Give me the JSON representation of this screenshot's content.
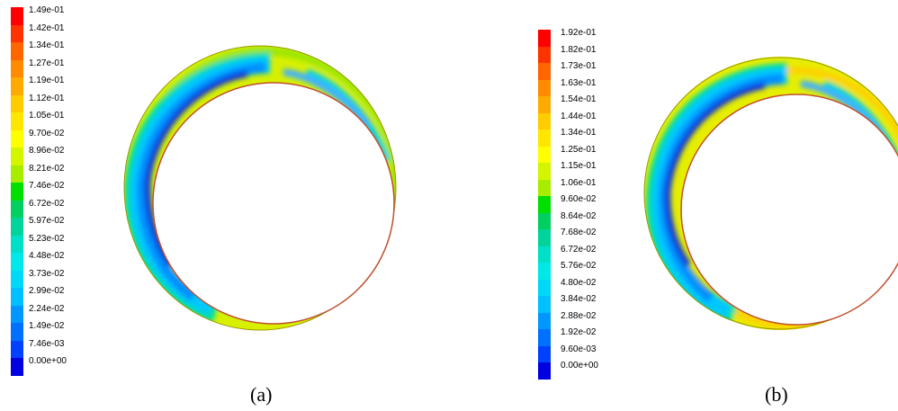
{
  "figures": [
    {
      "id": "a",
      "caption": "(a)",
      "legend": {
        "labels": [
          "1.49e-01",
          "1.42e-01",
          "1.34e-01",
          "1.27e-01",
          "1.19e-01",
          "1.12e-01",
          "1.05e-01",
          "9.70e-02",
          "8.96e-02",
          "8.21e-02",
          "7.46e-02",
          "6.72e-02",
          "5.97e-02",
          "5.23e-02",
          "4.48e-02",
          "3.73e-02",
          "2.99e-02",
          "2.24e-02",
          "1.49e-02",
          "7.46e-03",
          "0.00e+00"
        ]
      }
    },
    {
      "id": "b",
      "caption": "(b)",
      "legend": {
        "labels": [
          "1.92e-01",
          "1.82e-01",
          "1.73e-01",
          "1.63e-01",
          "1.54e-01",
          "1.44e-01",
          "1.34e-01",
          "1.25e-01",
          "1.15e-01",
          "1.06e-01",
          "9.60e-02",
          "8.64e-02",
          "7.68e-02",
          "6.72e-02",
          "5.76e-02",
          "4.80e-02",
          "3.84e-02",
          "2.88e-02",
          "1.92e-02",
          "9.60e-03",
          "0.00e+00"
        ]
      }
    }
  ],
  "colormap": [
    "#ff0000",
    "#ff3300",
    "#ff6600",
    "#ff8c00",
    "#ffaa00",
    "#ffcc00",
    "#ffe600",
    "#ffff00",
    "#d4f500",
    "#a8ec00",
    "#00e000",
    "#00d060",
    "#00d49a",
    "#00e0c8",
    "#00e8e8",
    "#00d8f8",
    "#00c0ff",
    "#0098ff",
    "#0070ff",
    "#0040ff",
    "#0000e0"
  ]
}
